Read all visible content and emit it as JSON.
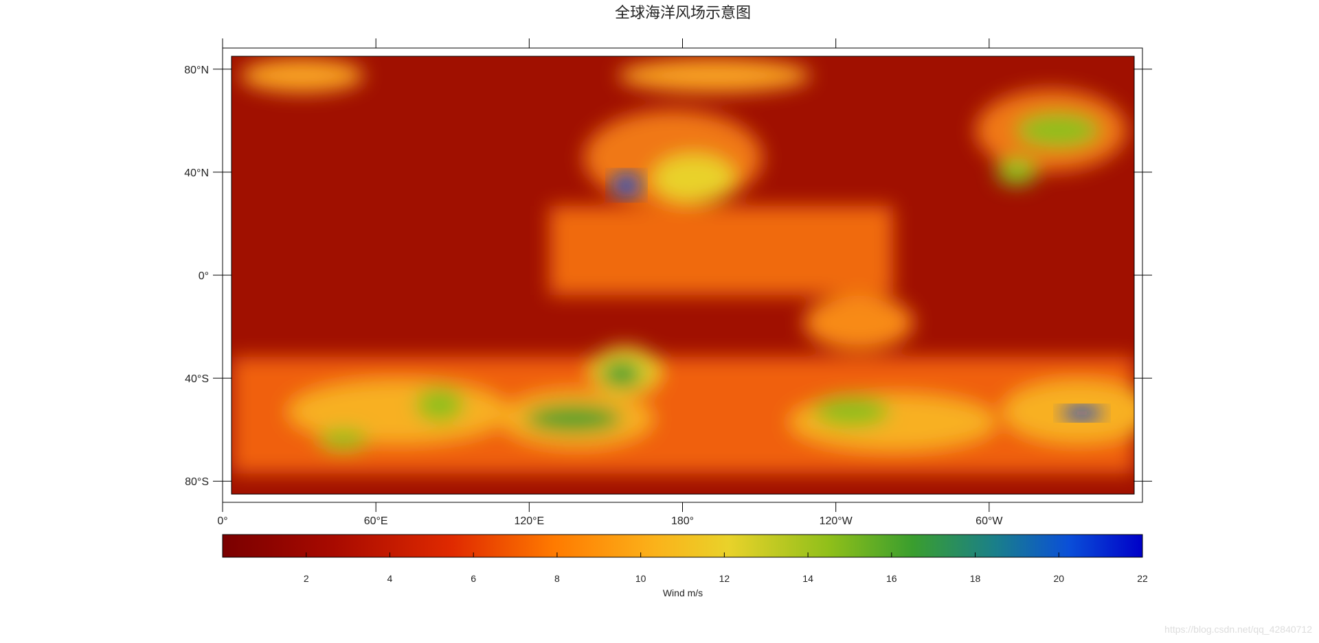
{
  "title": "全球海洋风场示意图",
  "map": {
    "lonlim": [
      0,
      360
    ],
    "latlim": [
      -85,
      85
    ],
    "lon_ticks": [
      {
        "value": 0,
        "label": "0°"
      },
      {
        "value": 60,
        "label": "60°E"
      },
      {
        "value": 120,
        "label": "120°E"
      },
      {
        "value": 180,
        "label": "180°"
      },
      {
        "value": 240,
        "label": "120°W"
      },
      {
        "value": 300,
        "label": "60°W"
      }
    ],
    "lat_ticks": [
      {
        "value": 80,
        "label": "80°N"
      },
      {
        "value": 40,
        "label": "40°N"
      },
      {
        "value": 0,
        "label": "0°"
      },
      {
        "value": -40,
        "label": "40°S"
      },
      {
        "value": -80,
        "label": "80°S"
      }
    ]
  },
  "colorbar": {
    "clim": [
      0,
      22
    ],
    "ticks": [
      2,
      4,
      6,
      8,
      10,
      12,
      14,
      16,
      18,
      20,
      22
    ],
    "label": "Wind m/s"
  },
  "watermark": "https://blog.csdn.net/qq_42840712"
}
